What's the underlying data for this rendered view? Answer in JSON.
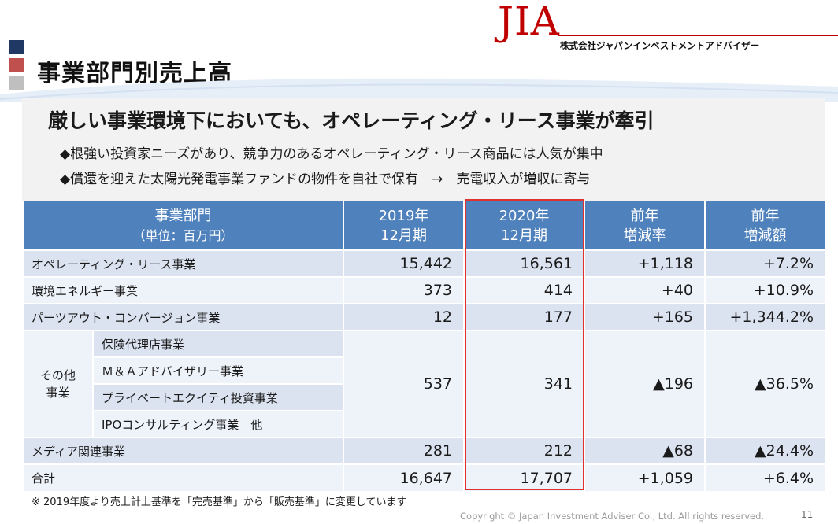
{
  "header": {
    "title": "事業部門別売上高",
    "logo_text": "JIA",
    "company_name": "株式会社ジャパンインベストメントアドバイザー"
  },
  "message": {
    "headline": "厳しい事業環境下においても、オペレーティング・リース事業が牽引",
    "bullets": [
      "◆根強い投資家ニーズがあり、競争力のあるオペレーティング・リース商品には人気が集中",
      "◆償還を迎えた太陽光発電事業ファンドの物件を自社で保有　→　売電収入が増収に寄与"
    ]
  },
  "table": {
    "headers": {
      "segment_line1": "事業部門",
      "segment_line2": "（単位：百万円）",
      "y2019_line1": "2019年",
      "y2019_line2": "12月期",
      "y2020_line1": "2020年",
      "y2020_line2": "12月期",
      "rate_line1": "前年",
      "rate_line2": "増減率",
      "amount_line1": "前年",
      "amount_line2": "増減額"
    },
    "rows": [
      {
        "label": "オペレーティング・リース事業",
        "y2019": "15,442",
        "y2020": "16,561",
        "col4": "+1,118",
        "col5": "+7.2%"
      },
      {
        "label": "環境エネルギー事業",
        "y2019": "373",
        "y2020": "414",
        "col4": "+40",
        "col5": "+10.9%"
      },
      {
        "label": "パーツアウト・コンバージョン事業",
        "y2019": "12",
        "y2020": "177",
        "col4": "+165",
        "col5": "+1,344.2%"
      }
    ],
    "other": {
      "label_line1": "その他",
      "label_line2": "事業",
      "subitems": [
        "保険代理店事業",
        "Ｍ＆Ａアドバイザリー事業",
        "プライベートエクイティ投資事業",
        "IPOコンサルティング事業　他"
      ],
      "y2019": "537",
      "y2020": "341",
      "col4": "▲196",
      "col5": "▲36.5%"
    },
    "media": {
      "label": "メディア関連事業",
      "y2019": "281",
      "y2020": "212",
      "col4": "▲68",
      "col5": "▲24.4%"
    },
    "total": {
      "label": "合計",
      "y2019": "16,647",
      "y2020": "17,707",
      "col4": "+1,059",
      "col5": "+6.4%"
    }
  },
  "footnote": "※ 2019年度より売上計上基準を「完売基準」から「販売基準」に変更しています",
  "copyright": "Copyright © Japan Investment Adviser Co., Ltd. All rights reserved.",
  "page_number": "11",
  "colors": {
    "header_blue": "#4f81bd",
    "row_dark": "#dbe3f0",
    "row_light": "#eef2f9",
    "highlight_red": "#e03030",
    "brand_red": "#c00000",
    "square_navy": "#1f3864",
    "square_red": "#c0504d",
    "square_gray": "#bfbfbf"
  }
}
